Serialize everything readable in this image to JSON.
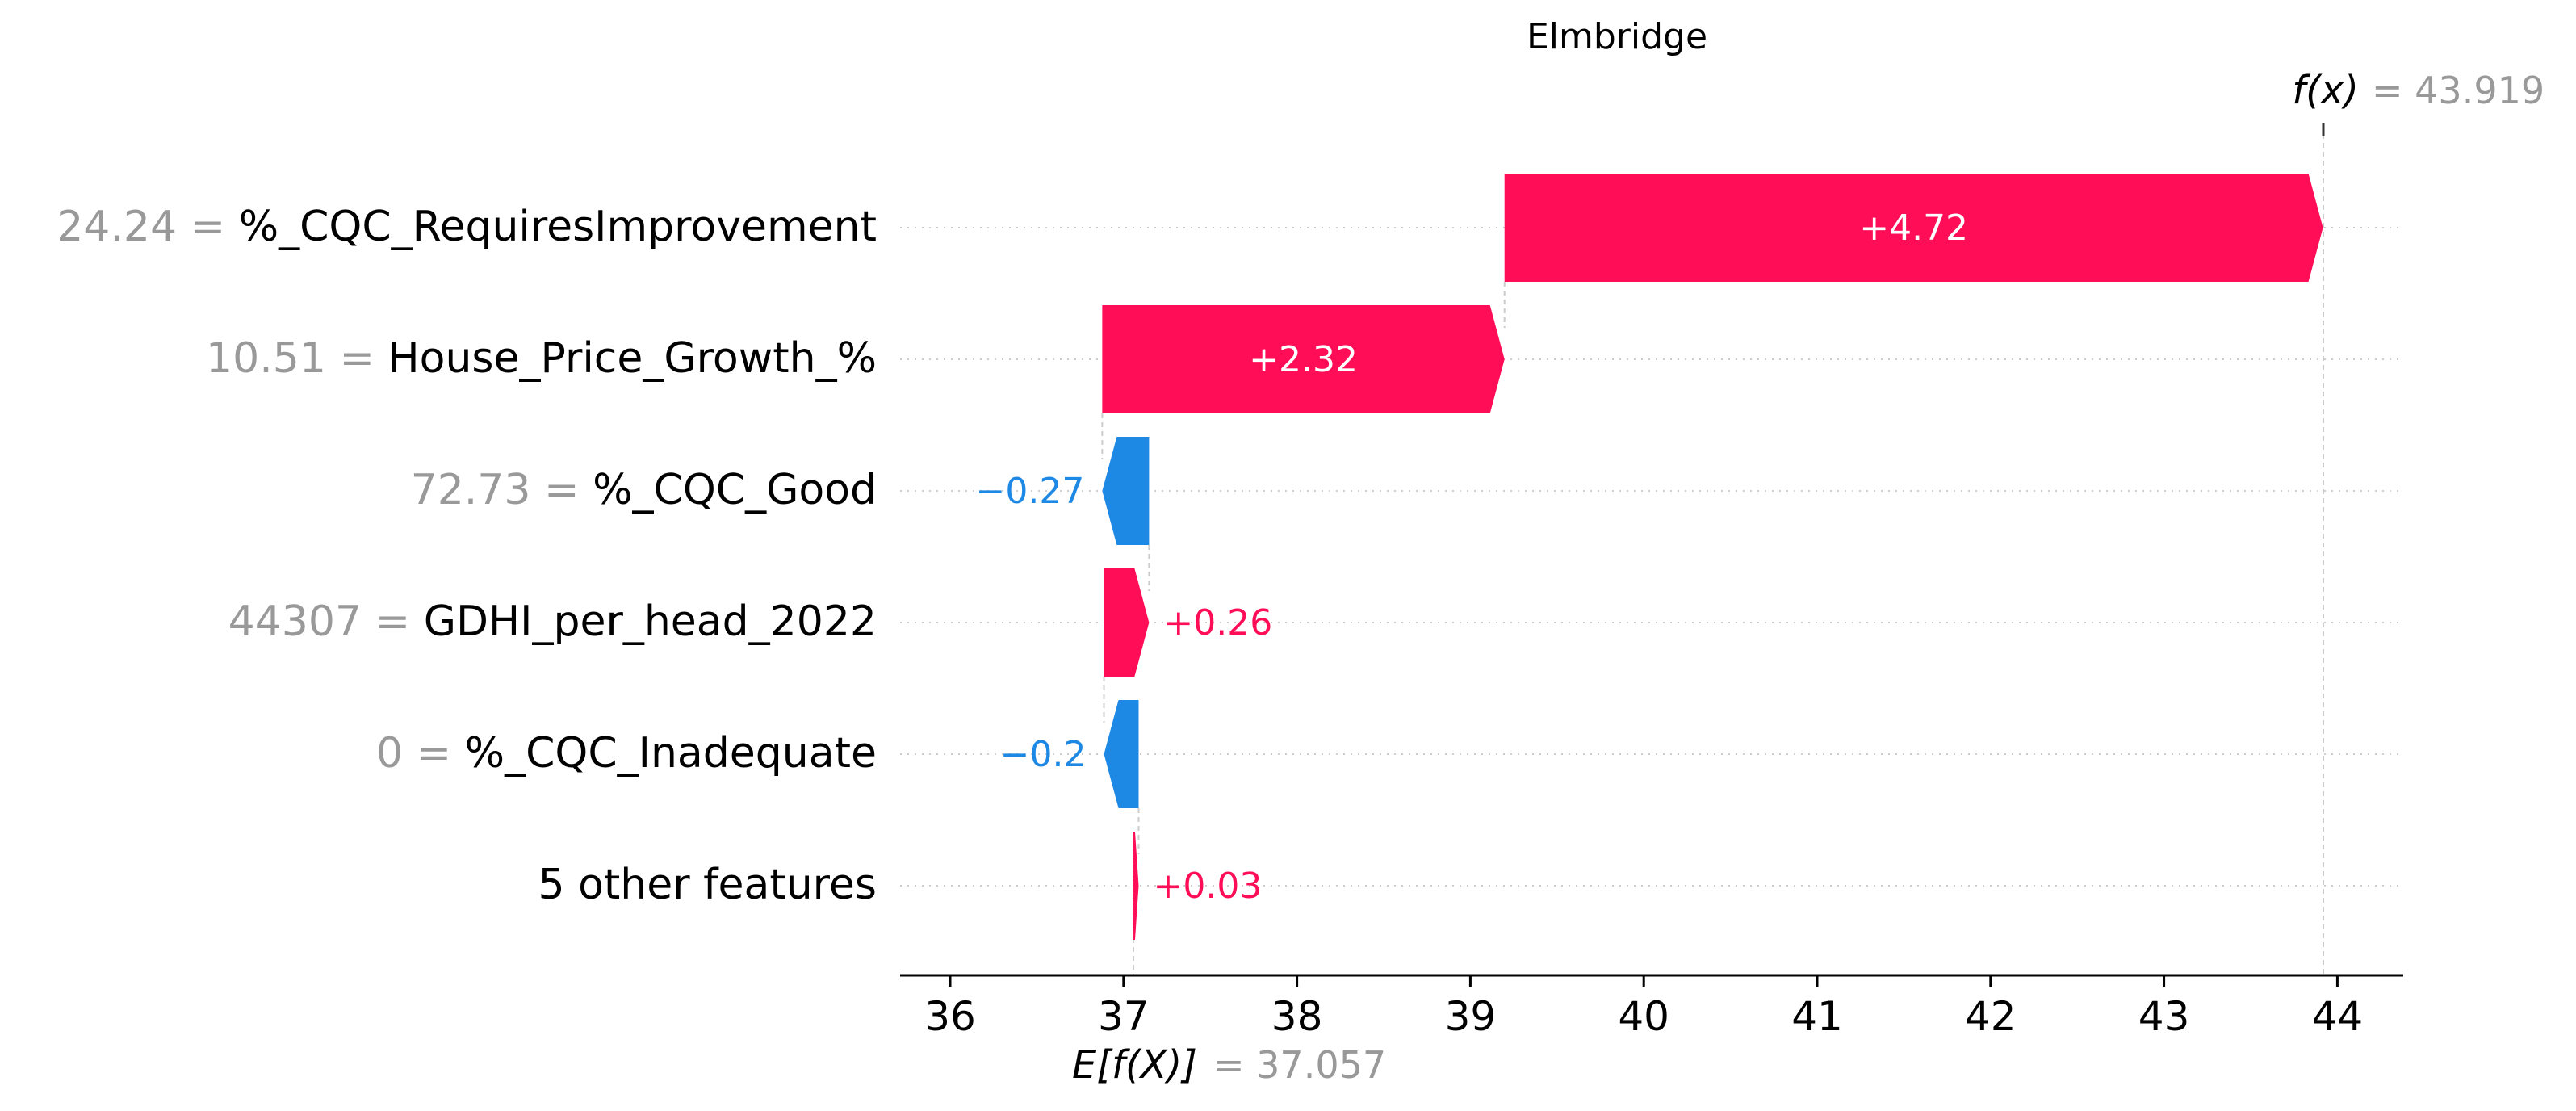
{
  "chart_data": {
    "type": "waterfall",
    "title": "Elmbridge",
    "base_value": 37.057,
    "base_label": "E[f(X)]",
    "base_value_text": "= 37.057",
    "output_value": 43.919,
    "output_label": "f(x)",
    "output_value_text": "= 43.919",
    "xlim": [
      35.8,
      44.4
    ],
    "xticks": [
      36,
      37,
      38,
      39,
      40,
      41,
      42,
      43,
      44
    ],
    "features": [
      {
        "value_text": "24.24 =",
        "name": "%_CQC_RequiresImprovement",
        "shap": 4.72,
        "label": "+4.72"
      },
      {
        "value_text": "10.51 =",
        "name": "House_Price_Growth_%",
        "shap": 2.32,
        "label": "+2.32"
      },
      {
        "value_text": "72.73 =",
        "name": "%_CQC_Good",
        "shap": -0.27,
        "label": "−0.27"
      },
      {
        "value_text": "44307 =",
        "name": "GDHI_per_head_2022",
        "shap": 0.26,
        "label": "+0.26"
      },
      {
        "value_text": "0 =",
        "name": "%_CQC_Inadequate",
        "shap": -0.2,
        "label": "−0.2"
      },
      {
        "value_text": "",
        "name": "5 other features",
        "shap": 0.03,
        "label": "+0.03"
      }
    ],
    "colors": {
      "positive": "#ff0d57",
      "negative": "#1e88e5",
      "muted": "#999999",
      "text": "#000000",
      "grid": "#cccccc"
    }
  }
}
